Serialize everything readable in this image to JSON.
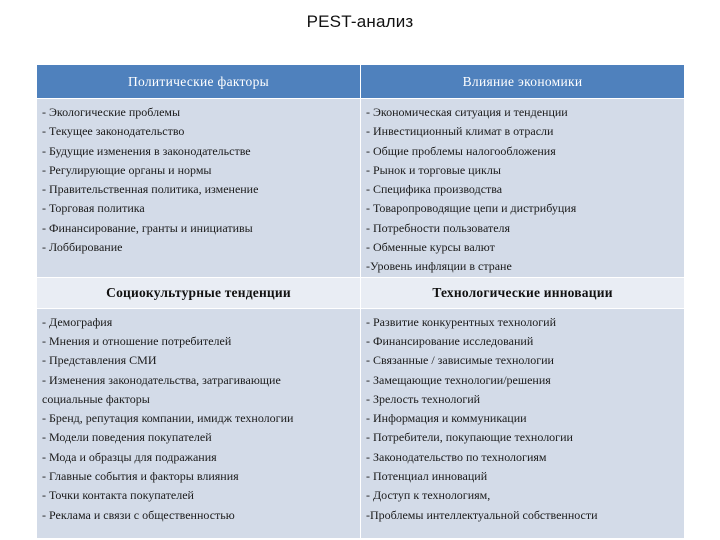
{
  "title": "PEST-анализ",
  "table": {
    "political": {
      "header": "Политические факторы",
      "items": [
        "- Экологические проблемы",
        "- Текущее законодательство",
        "- Будущие изменения в законодательстве",
        " - Регулирующие органы и нормы",
        "- Правительственная политика, изменение",
        "- Торговая политика",
        "- Финансирование, гранты и инициативы",
        "- Лоббирование"
      ]
    },
    "economic": {
      "header": "Влияние экономики",
      "items": [
        "- Экономическая ситуация и тенденции",
        "- Инвестиционный климат в отрасли",
        " - Общие проблемы налогообложения",
        "  - Рынок и торговые циклы",
        "- Специфика производства",
        "- Товаропроводящие цепи и дистрибуция",
        "- Потребности  пользователя",
        "- Обменные курсы валют",
        "-Уровень инфляции в стране"
      ]
    },
    "social": {
      "header": "Социокультурные тенденции",
      "items": [
        " - Демография",
        "- Мнения и отношение потребителей",
        "- Представления СМИ",
        "- Изменения законодательства, затрагивающие",
        "социальные факторы",
        "- Бренд, репутация компании, имидж технологии",
        "- Модели поведения покупателей",
        "- Мода и образцы для подражания",
        "- Главные события и факторы влияния",
        "- Точки контакта покупателей",
        " - Реклама и связи с общественностью"
      ]
    },
    "technological": {
      "header": "Технологические инновации",
      "items": [
        "- Развитие конкурентных технологий",
        "- Финансирование исследований",
        "- Связанные / зависимые технологии",
        "- Замещающие технологии/решения",
        "- Зрелость технологий",
        "- Информация и коммуникации",
        "- Потребители, покупающие технологии",
        "- Законодательство по технологиям",
        "- Потенциал инноваций",
        "- Доступ к технологиям,",
        "-Проблемы интеллектуальной собственности"
      ]
    }
  },
  "colors": {
    "header_blue": "#4f81bd",
    "row_dark": "#d3dbe8",
    "row_light": "#e9edf4"
  }
}
